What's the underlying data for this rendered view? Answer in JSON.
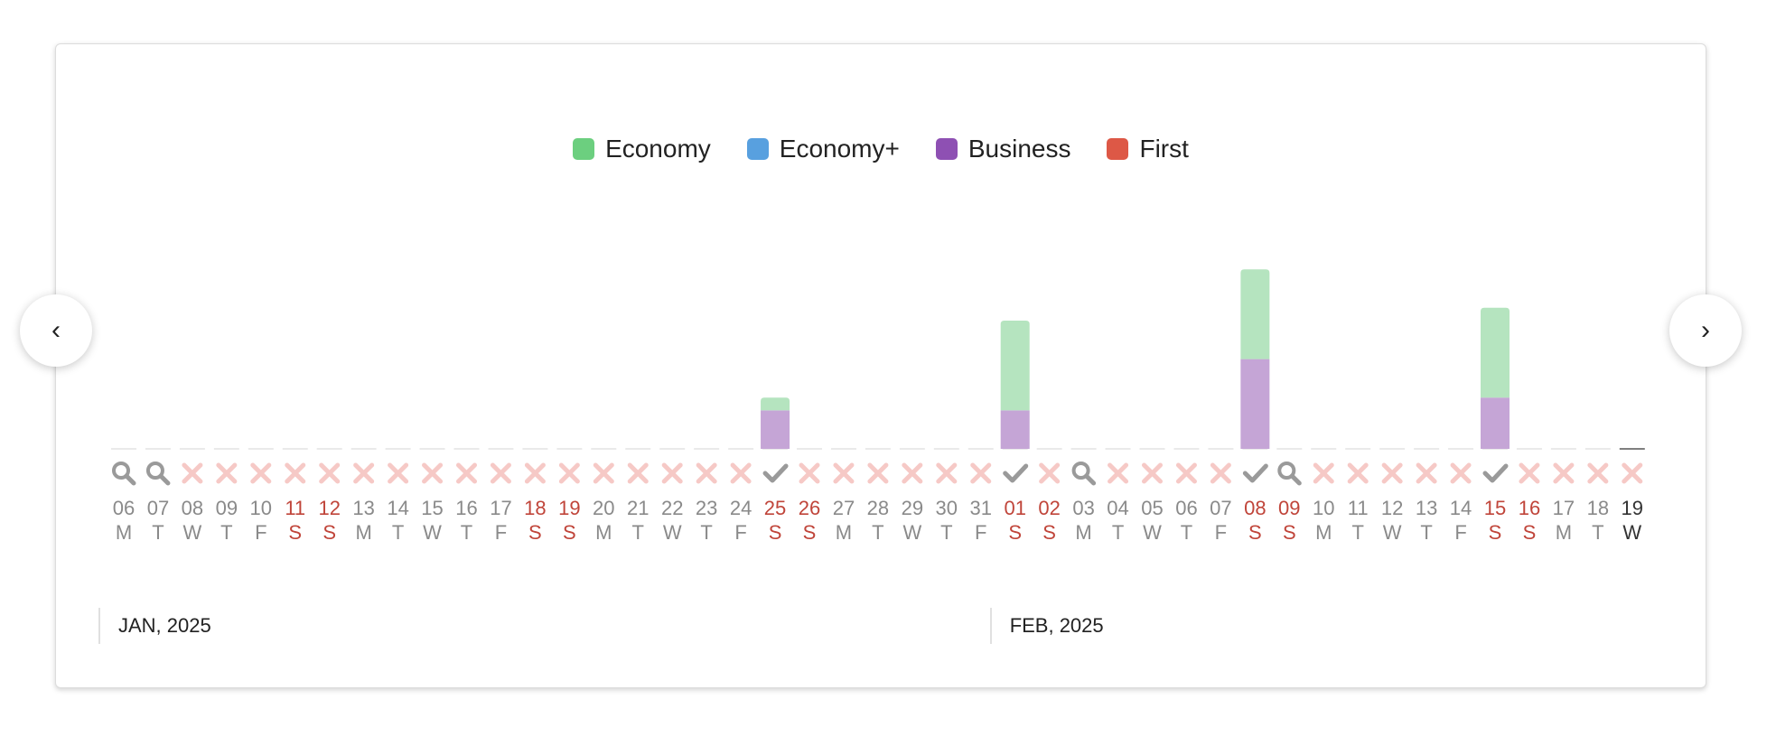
{
  "legend": [
    {
      "label": "Economy",
      "color": "#6ccf7f"
    },
    {
      "label": "Economy+",
      "color": "#58a0df"
    },
    {
      "label": "Business",
      "color": "#8e50b3"
    },
    {
      "label": "First",
      "color": "#dd5846"
    }
  ],
  "nav": {
    "prev_icon": "chevron-left-icon",
    "prev_glyph": "‹",
    "next_icon": "chevron-right-icon",
    "next_glyph": "›"
  },
  "months": [
    {
      "label": "JAN, 2025",
      "start_index": 0
    },
    {
      "label": "FEB, 2025",
      "start_index": 26
    }
  ],
  "colors": {
    "economy_bar": "#b5e4bf",
    "business_bar": "#c5a5d6",
    "weekend_text": "#c0453a",
    "weekday_text": "#8a8a8a",
    "today_text": "#333333",
    "x_icon": "#f6c9c6",
    "search_icon": "#9a9a9a",
    "check_icon": "#9a9a9a"
  },
  "chart_data": {
    "type": "bar",
    "stacked": true,
    "series_names": [
      "Economy",
      "Economy+",
      "Business",
      "First"
    ],
    "days": [
      {
        "day": "06",
        "dow": "M",
        "status": "search",
        "weekend": false,
        "economy": 0,
        "business": 0
      },
      {
        "day": "07",
        "dow": "T",
        "status": "search",
        "weekend": false,
        "economy": 0,
        "business": 0
      },
      {
        "day": "08",
        "dow": "W",
        "status": "none",
        "weekend": false,
        "economy": 0,
        "business": 0
      },
      {
        "day": "09",
        "dow": "T",
        "status": "none",
        "weekend": false,
        "economy": 0,
        "business": 0
      },
      {
        "day": "10",
        "dow": "F",
        "status": "none",
        "weekend": false,
        "economy": 0,
        "business": 0
      },
      {
        "day": "11",
        "dow": "S",
        "status": "none",
        "weekend": true,
        "economy": 0,
        "business": 0
      },
      {
        "day": "12",
        "dow": "S",
        "status": "none",
        "weekend": true,
        "economy": 0,
        "business": 0
      },
      {
        "day": "13",
        "dow": "M",
        "status": "none",
        "weekend": false,
        "economy": 0,
        "business": 0
      },
      {
        "day": "14",
        "dow": "T",
        "status": "none",
        "weekend": false,
        "economy": 0,
        "business": 0
      },
      {
        "day": "15",
        "dow": "W",
        "status": "none",
        "weekend": false,
        "economy": 0,
        "business": 0
      },
      {
        "day": "16",
        "dow": "T",
        "status": "none",
        "weekend": false,
        "economy": 0,
        "business": 0
      },
      {
        "day": "17",
        "dow": "F",
        "status": "none",
        "weekend": false,
        "economy": 0,
        "business": 0
      },
      {
        "day": "18",
        "dow": "S",
        "status": "none",
        "weekend": true,
        "economy": 0,
        "business": 0
      },
      {
        "day": "19",
        "dow": "S",
        "status": "none",
        "weekend": true,
        "economy": 0,
        "business": 0
      },
      {
        "day": "20",
        "dow": "M",
        "status": "none",
        "weekend": false,
        "economy": 0,
        "business": 0
      },
      {
        "day": "21",
        "dow": "T",
        "status": "none",
        "weekend": false,
        "economy": 0,
        "business": 0
      },
      {
        "day": "22",
        "dow": "W",
        "status": "none",
        "weekend": false,
        "economy": 0,
        "business": 0
      },
      {
        "day": "23",
        "dow": "T",
        "status": "none",
        "weekend": false,
        "economy": 0,
        "business": 0
      },
      {
        "day": "24",
        "dow": "F",
        "status": "none",
        "weekend": false,
        "economy": 0,
        "business": 0
      },
      {
        "day": "25",
        "dow": "S",
        "status": "available",
        "weekend": true,
        "economy": 1,
        "business": 3
      },
      {
        "day": "26",
        "dow": "S",
        "status": "none",
        "weekend": true,
        "economy": 0,
        "business": 0
      },
      {
        "day": "27",
        "dow": "M",
        "status": "none",
        "weekend": false,
        "economy": 0,
        "business": 0
      },
      {
        "day": "28",
        "dow": "T",
        "status": "none",
        "weekend": false,
        "economy": 0,
        "business": 0
      },
      {
        "day": "29",
        "dow": "W",
        "status": "none",
        "weekend": false,
        "economy": 0,
        "business": 0
      },
      {
        "day": "30",
        "dow": "T",
        "status": "none",
        "weekend": false,
        "economy": 0,
        "business": 0
      },
      {
        "day": "31",
        "dow": "F",
        "status": "none",
        "weekend": false,
        "economy": 0,
        "business": 0
      },
      {
        "day": "01",
        "dow": "S",
        "status": "available",
        "weekend": true,
        "economy": 7,
        "business": 3
      },
      {
        "day": "02",
        "dow": "S",
        "status": "none",
        "weekend": true,
        "economy": 0,
        "business": 0
      },
      {
        "day": "03",
        "dow": "M",
        "status": "search",
        "weekend": false,
        "economy": 0,
        "business": 0
      },
      {
        "day": "04",
        "dow": "T",
        "status": "none",
        "weekend": false,
        "economy": 0,
        "business": 0
      },
      {
        "day": "05",
        "dow": "W",
        "status": "none",
        "weekend": false,
        "economy": 0,
        "business": 0
      },
      {
        "day": "06",
        "dow": "T",
        "status": "none",
        "weekend": false,
        "economy": 0,
        "business": 0
      },
      {
        "day": "07",
        "dow": "F",
        "status": "none",
        "weekend": false,
        "economy": 0,
        "business": 0
      },
      {
        "day": "08",
        "dow": "S",
        "status": "available",
        "weekend": true,
        "economy": 7,
        "business": 7
      },
      {
        "day": "09",
        "dow": "S",
        "status": "search",
        "weekend": true,
        "economy": 0,
        "business": 0
      },
      {
        "day": "10",
        "dow": "M",
        "status": "none",
        "weekend": false,
        "economy": 0,
        "business": 0
      },
      {
        "day": "11",
        "dow": "T",
        "status": "none",
        "weekend": false,
        "economy": 0,
        "business": 0
      },
      {
        "day": "12",
        "dow": "W",
        "status": "none",
        "weekend": false,
        "economy": 0,
        "business": 0
      },
      {
        "day": "13",
        "dow": "T",
        "status": "none",
        "weekend": false,
        "economy": 0,
        "business": 0
      },
      {
        "day": "14",
        "dow": "F",
        "status": "none",
        "weekend": false,
        "economy": 0,
        "business": 0
      },
      {
        "day": "15",
        "dow": "S",
        "status": "available",
        "weekend": true,
        "economy": 7,
        "business": 4
      },
      {
        "day": "16",
        "dow": "S",
        "status": "none",
        "weekend": true,
        "economy": 0,
        "business": 0
      },
      {
        "day": "17",
        "dow": "M",
        "status": "none",
        "weekend": false,
        "economy": 0,
        "business": 0
      },
      {
        "day": "18",
        "dow": "T",
        "status": "none",
        "weekend": false,
        "economy": 0,
        "business": 0
      },
      {
        "day": "19",
        "dow": "W",
        "status": "none",
        "weekend": false,
        "today": true,
        "economy": 0,
        "business": 0
      }
    ]
  }
}
